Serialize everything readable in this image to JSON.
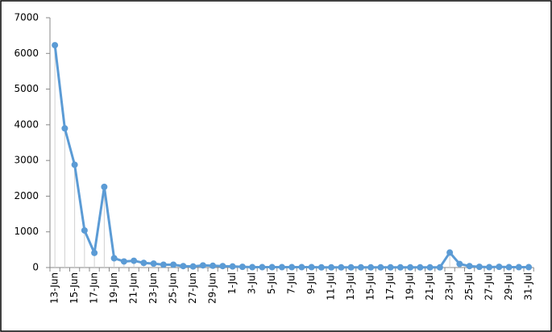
{
  "chart_data": {
    "type": "line",
    "categories": [
      "13-Jun",
      null,
      "15-Jun",
      null,
      "17-Jun",
      null,
      "19-Jun",
      null,
      "21-Jun",
      null,
      "23-Jun",
      null,
      "25-Jun",
      null,
      "27-Jun",
      null,
      "29-Jun",
      null,
      "1-Jul",
      null,
      "3-Jul",
      null,
      "5-Jul",
      null,
      "7-Jul",
      null,
      "9-Jul",
      null,
      "11-Jul",
      null,
      "13-Jul",
      null,
      "15-Jul",
      null,
      "17-Jul",
      null,
      "19-Jul",
      null,
      "21-Jul",
      null,
      "23-Jul",
      null,
      "25-Jul",
      null,
      "27-Jul",
      null,
      "29-Jul",
      null,
      "31-Jul"
    ],
    "values": [
      6230,
      3900,
      2880,
      1040,
      410,
      2260,
      260,
      170,
      190,
      130,
      110,
      80,
      80,
      40,
      30,
      60,
      50,
      40,
      30,
      20,
      10,
      10,
      10,
      10,
      10,
      10,
      10,
      5,
      5,
      5,
      5,
      5,
      5,
      5,
      5,
      5,
      5,
      5,
      5,
      5,
      420,
      100,
      40,
      20,
      10,
      20,
      10,
      10,
      10
    ],
    "color": "#5b9bd5",
    "ylim": [
      0,
      7000
    ],
    "yticks": [
      0,
      1000,
      2000,
      3000,
      4000,
      5000,
      6000,
      7000
    ]
  }
}
